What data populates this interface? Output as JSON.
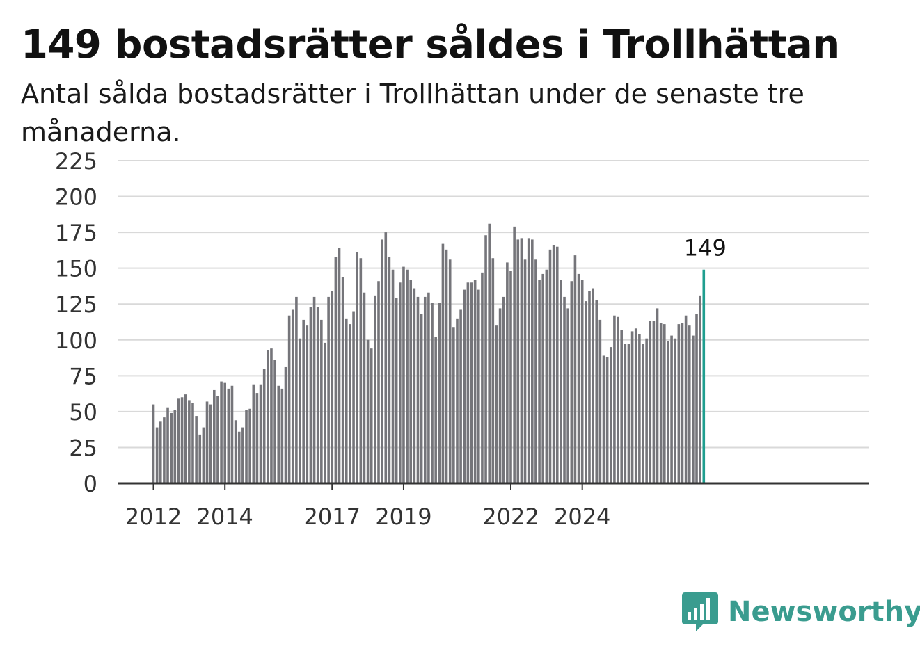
{
  "title": "149 bostadsrätter såldes i Trollhättan",
  "subtitle": "Antal sålda bostadsrätter i Trollhättan under de senaste tre månaderna.",
  "brand": {
    "name": "Newsworthy",
    "color": "#3a9c8f"
  },
  "chart_data": {
    "type": "bar",
    "ylim": [
      0,
      225
    ],
    "yticks": [
      0,
      25,
      50,
      75,
      100,
      125,
      150,
      175,
      200,
      225
    ],
    "xtick_labels": [
      "2012",
      "2014",
      "2017",
      "2019",
      "2022",
      "2024"
    ],
    "xtick_bar_index": [
      0,
      20,
      50,
      70,
      100,
      120
    ],
    "grid": true,
    "bar_color": "#75757a",
    "highlight_color": "#1f9e8f",
    "highlight_label": "149",
    "values": [
      55,
      39,
      43,
      46,
      53,
      49,
      51,
      59,
      60,
      62,
      58,
      56,
      47,
      34,
      39,
      57,
      55,
      65,
      61,
      71,
      70,
      66,
      68,
      44,
      36,
      39,
      51,
      52,
      69,
      63,
      69,
      80,
      93,
      94,
      86,
      68,
      66,
      81,
      117,
      121,
      130,
      101,
      114,
      110,
      123,
      130,
      123,
      114,
      98,
      130,
      134,
      158,
      164,
      144,
      115,
      111,
      120,
      161,
      157,
      133,
      100,
      94,
      131,
      141,
      170,
      175,
      158,
      149,
      129,
      140,
      151,
      149,
      142,
      136,
      130,
      118,
      130,
      133,
      126,
      102,
      126,
      167,
      163,
      156,
      109,
      115,
      121,
      135,
      140,
      140,
      142,
      135,
      147,
      173,
      181,
      157,
      110,
      122,
      130,
      154,
      148,
      179,
      170,
      171,
      156,
      171,
      170,
      156,
      142,
      146,
      149,
      163,
      166,
      165,
      142,
      130,
      122,
      141,
      159,
      146,
      142,
      127,
      134,
      136,
      128,
      114,
      89,
      88,
      95,
      117,
      116,
      107,
      97,
      97,
      106,
      108,
      104,
      97,
      101,
      113,
      113,
      122,
      112,
      111,
      99,
      103,
      101,
      111,
      112,
      117,
      110,
      103,
      118,
      131,
      149
    ]
  }
}
